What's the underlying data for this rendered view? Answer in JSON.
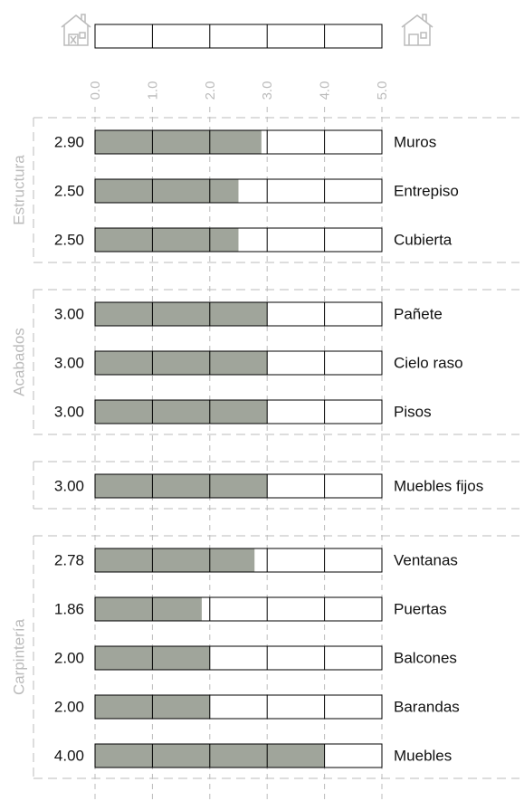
{
  "chart_data": {
    "type": "bar",
    "xlim": [
      0,
      5
    ],
    "xticks": [
      {
        "value": 0,
        "label": "0.0"
      },
      {
        "value": 1,
        "label": "1.0"
      },
      {
        "value": 2,
        "label": "2.0"
      },
      {
        "value": 3,
        "label": "3.0"
      },
      {
        "value": 4,
        "label": "4.0"
      },
      {
        "value": 5,
        "label": "5.0"
      }
    ],
    "color": "#a0a59b",
    "grid": true,
    "groups": [
      {
        "name": "Estructura",
        "categories": [
          "Muros",
          "Entrepiso",
          "Cubierta"
        ],
        "values": [
          2.9,
          2.5,
          2.5
        ],
        "value_labels": [
          "2.90",
          "2.50",
          "2.50"
        ]
      },
      {
        "name": "Acabados",
        "categories": [
          "Pañete",
          "Cielo raso",
          "Pisos"
        ],
        "values": [
          3,
          3,
          3
        ],
        "value_labels": [
          "3.00",
          "3.00",
          "3.00"
        ]
      },
      {
        "categories": [
          "Muebles fijos"
        ],
        "values": [
          3
        ],
        "value_labels": [
          "3.00"
        ]
      },
      {
        "name": "Carpintería",
        "categories": [
          "Ventanas",
          "Puertas",
          "Balcones",
          "Barandas",
          "Muebles"
        ],
        "values": [
          2.78,
          1.86,
          2,
          2,
          4
        ],
        "value_labels": [
          "2.78",
          "1.86",
          "2.00",
          "2.00",
          "4.00"
        ]
      }
    ]
  }
}
